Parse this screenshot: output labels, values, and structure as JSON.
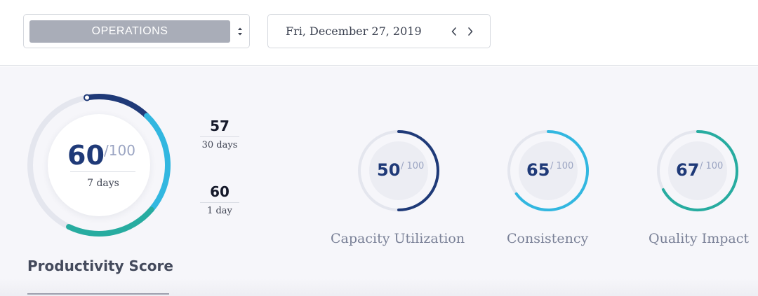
{
  "header": {
    "department_select": {
      "value": "OPERATIONS"
    },
    "date_picker": {
      "value": "Fri, December 27, 2019",
      "prev_icon": "chevron-left-icon",
      "next_icon": "chevron-right-icon"
    }
  },
  "productivity": {
    "title": "Productivity Score",
    "score": "60",
    "max": "/100",
    "period": "7 days",
    "score_fraction": 0.6,
    "history": [
      {
        "value": "57",
        "period": "30 days"
      },
      {
        "value": "60",
        "period": "1 day"
      }
    ]
  },
  "metrics": [
    {
      "label": "Capacity Utilization",
      "score": "50",
      "max": "/ 100",
      "fraction": 0.5,
      "color": "#1f3a78"
    },
    {
      "label": "Consistency",
      "score": "65",
      "max": "/ 100",
      "fraction": 0.65,
      "color": "#32b7e0"
    },
    {
      "label": "Quality Impact",
      "score": "67",
      "max": "/ 100",
      "fraction": 0.67,
      "color": "#27aca0"
    }
  ],
  "colors": {
    "navy": "#1f3a78",
    "cyan": "#32b7e0",
    "teal": "#27aca0",
    "track": "#e4e6ee",
    "select_fill": "#a9adb8"
  }
}
